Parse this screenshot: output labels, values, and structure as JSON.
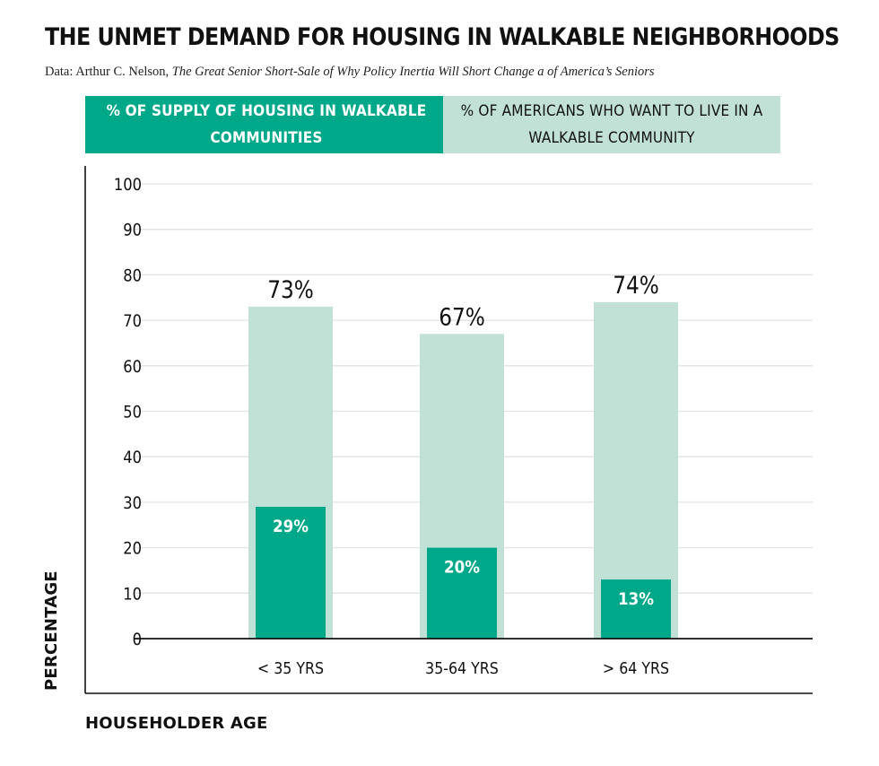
{
  "title": "THE UNMET DEMAND FOR HOUSING IN WALKABLE NEIGHBORHOODS",
  "source": {
    "prefix": "Data: Arthur C. Nelson, ",
    "work": "The Great Senior Short-Sale of Why Policy Inertia Will Short Change a of America’s Seniors"
  },
  "legend": {
    "supply": "% OF SUPPLY OF HOUSING IN WALKABLE COMMUNITIES",
    "demand": "% OF AMERICANS WHO WANT TO LIVE IN A WALKABLE COMMUNITY"
  },
  "colors": {
    "supply": "#00a88a",
    "demand": "#c1e0d6",
    "grid": "#e3e3e3",
    "axis": "#111111"
  },
  "chart_data": {
    "type": "bar",
    "title": "THE UNMET DEMAND FOR HOUSING IN WALKABLE NEIGHBORHOODS",
    "xlabel": "HOUSEHOLDER AGE",
    "ylabel": "PERCENTAGE",
    "categories": [
      "< 35 YRS",
      "35-64 YRS",
      "> 64 YRS"
    ],
    "series": [
      {
        "name": "% OF AMERICANS WHO WANT TO LIVE IN A WALKABLE COMMUNITY",
        "values": [
          73,
          67,
          74
        ],
        "labels": [
          "73%",
          "67%",
          "74%"
        ]
      },
      {
        "name": "% OF SUPPLY OF HOUSING IN WALKABLE COMMUNITIES",
        "values": [
          29,
          20,
          13
        ],
        "labels": [
          "29%",
          "20%",
          "13%"
        ]
      }
    ],
    "ylim": [
      0,
      100
    ],
    "yticks": [
      0,
      10,
      20,
      30,
      40,
      50,
      60,
      70,
      80,
      90,
      100
    ],
    "grid": true,
    "legend": "top"
  }
}
